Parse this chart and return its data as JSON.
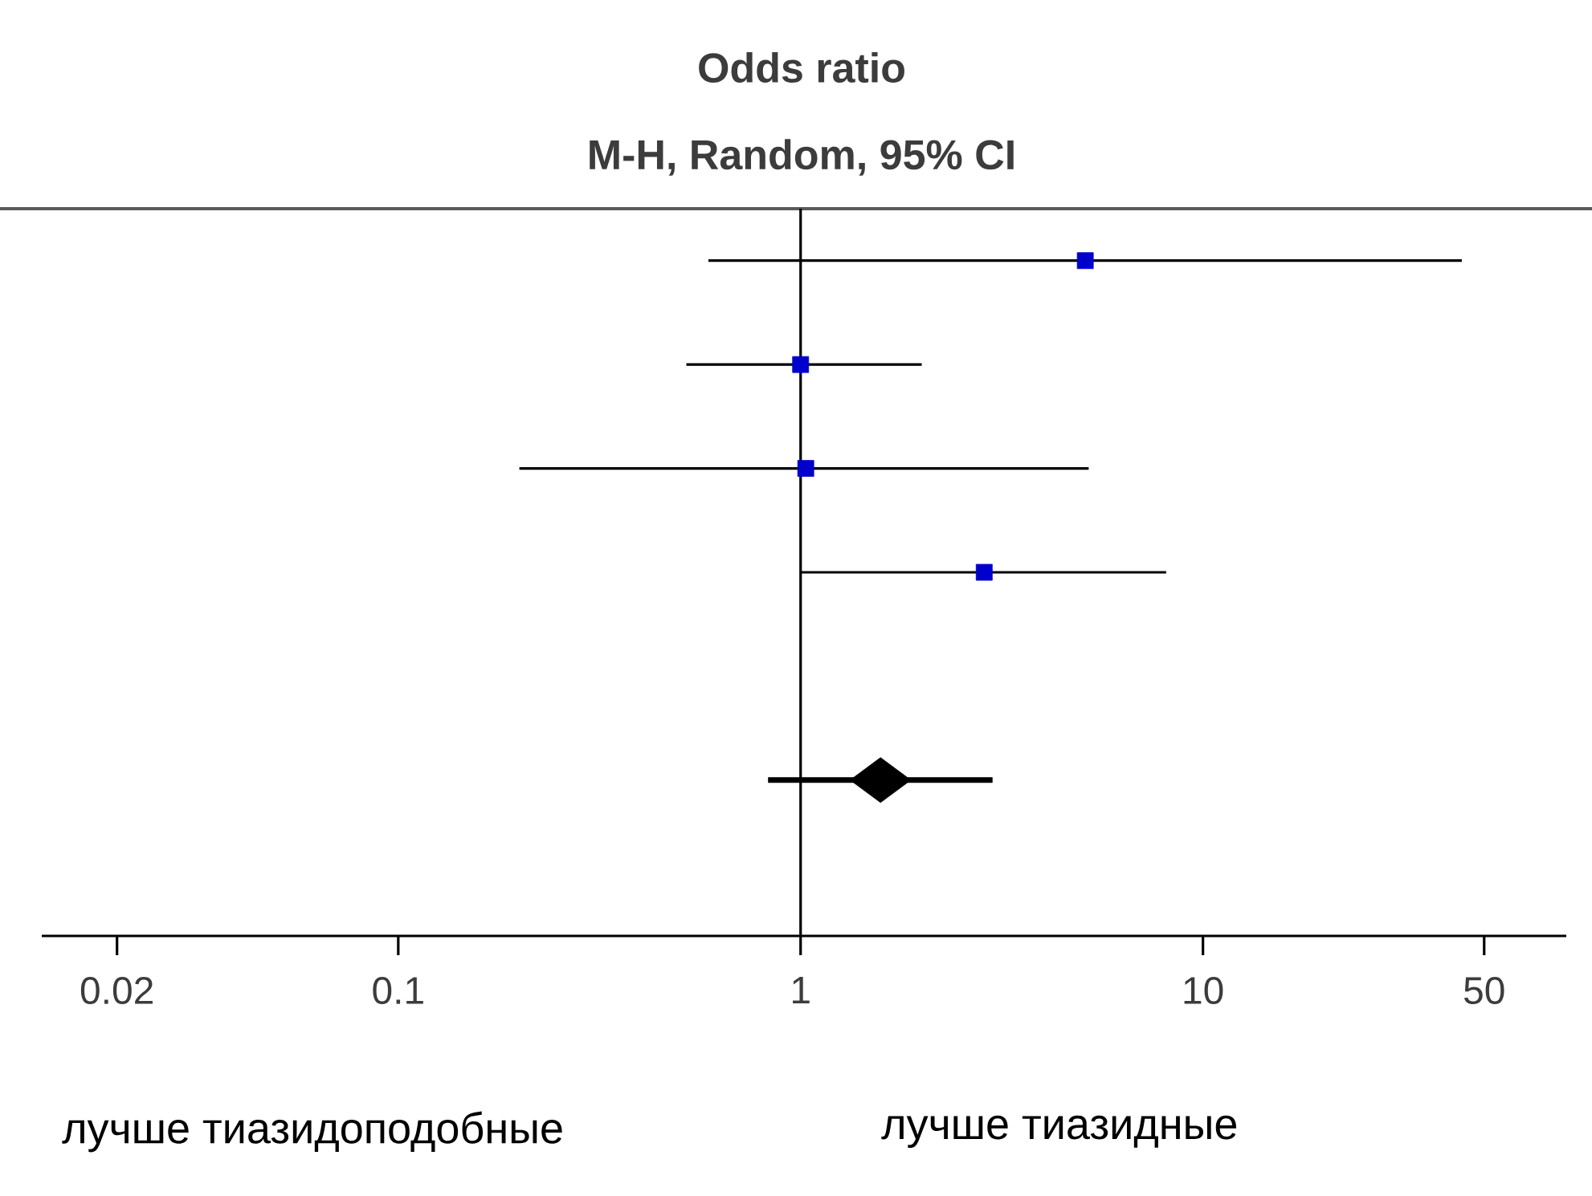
{
  "chart_data": {
    "type": "scatter",
    "orientation": "horizontal",
    "title": "Odds ratio",
    "subtitle": "M-H, Random, 95% CI",
    "categories": [
      null,
      null,
      null,
      null,
      null,
      null,
      null
    ],
    "series": [
      {
        "color": "#0000cc",
        "marker": "square",
        "values": [
          5.1,
          1.0,
          1.03,
          2.86,
          null,
          null,
          null
        ],
        "errors": [
          [
            0.59,
            44
          ],
          [
            0.52,
            2.0
          ],
          [
            0.2,
            5.2
          ],
          [
            1.0,
            8.1
          ],
          null,
          null,
          null
        ]
      },
      {
        "color": "#000000",
        "marker": "diamond",
        "values": [
          null,
          null,
          null,
          null,
          null,
          1.58,
          null
        ],
        "errors": [
          null,
          null,
          null,
          null,
          null,
          [
            0.83,
            3.0
          ],
          null
        ]
      }
    ],
    "log": "x",
    "xlim": [
      0.013,
      80
    ],
    "xticks": [
      0.02,
      0.1,
      1,
      10,
      50
    ],
    "ref_lines": [
      {
        "axis": "x",
        "value": 1,
        "color": "#000000"
      }
    ],
    "annotations": [
      "лучше тиазидоподобные",
      "лучше тиазидные"
    ]
  }
}
